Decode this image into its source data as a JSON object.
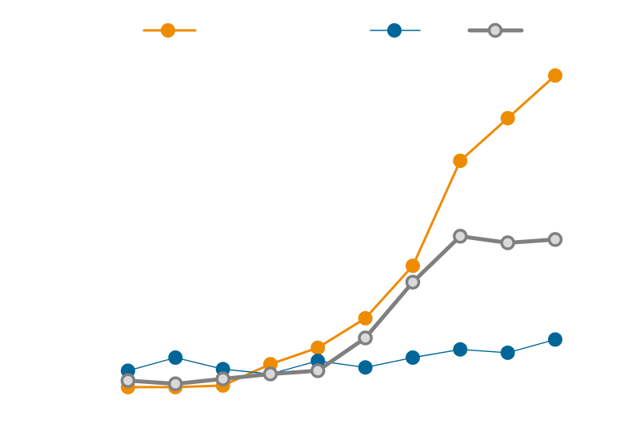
{
  "chart_data": {
    "type": "line",
    "title": "",
    "xlabel": "",
    "ylabel": "",
    "x": [
      1,
      2,
      3,
      4,
      5,
      6,
      7,
      8,
      9,
      10
    ],
    "xlim": [
      1,
      10
    ],
    "ylim": [
      0,
      100
    ],
    "grid": false,
    "legend_position": "top",
    "series": [
      {
        "color": "#ee8c00",
        "marker_fill": "#ee8c00",
        "marker_stroke": "#ee8c00",
        "line_style": "medium",
        "values": [
          1,
          1,
          1.5,
          8,
          13,
          22,
          38,
          70,
          83,
          96
        ]
      },
      {
        "color": "#006699",
        "marker_fill": "#006699",
        "marker_stroke": "#006699",
        "line_style": "thin",
        "values": [
          6,
          10,
          6.5,
          5,
          9,
          7,
          10,
          12.5,
          11.5,
          15.5
        ]
      },
      {
        "color": "#808080",
        "marker_fill": "#d9d9d9",
        "marker_stroke": "#808080",
        "line_style": "thick",
        "values": [
          3,
          2,
          3.5,
          5,
          6,
          16,
          33,
          47,
          45,
          46
        ]
      }
    ]
  }
}
